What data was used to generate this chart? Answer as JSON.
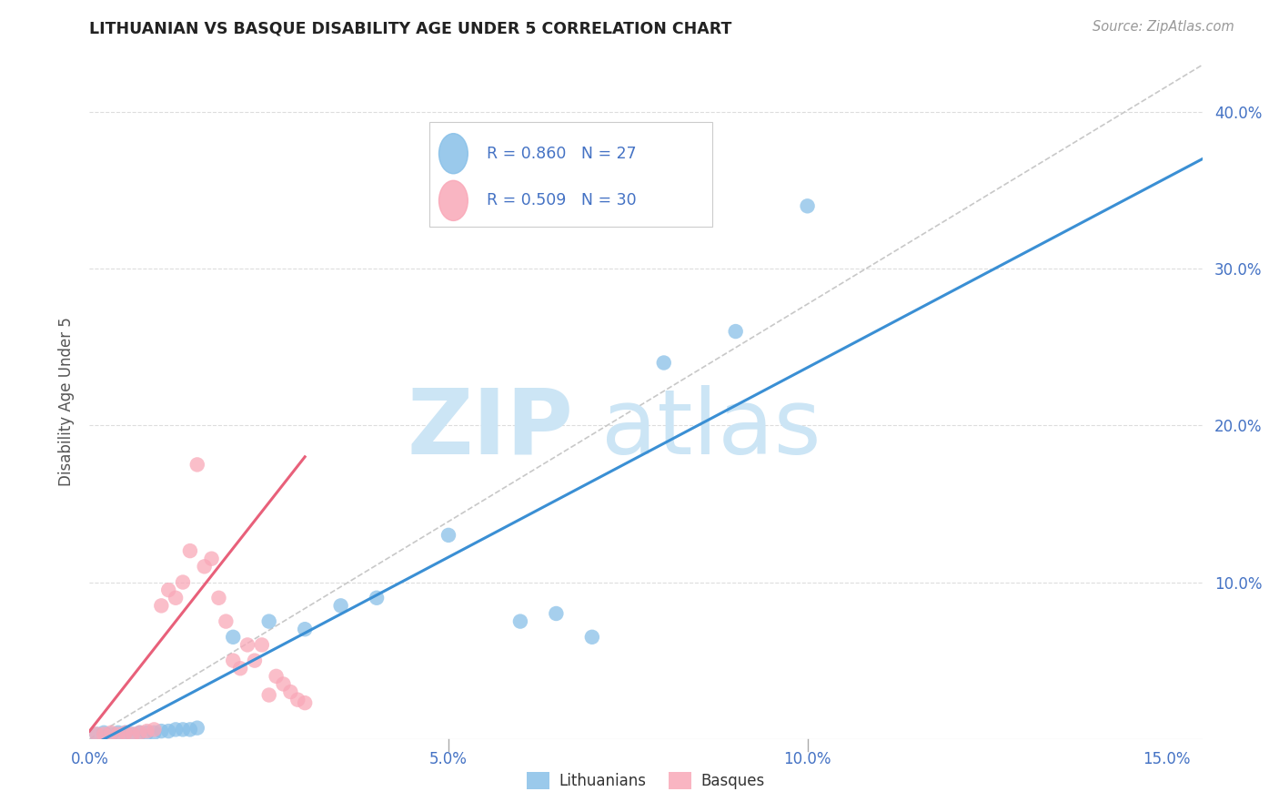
{
  "title": "LITHUANIAN VS BASQUE DISABILITY AGE UNDER 5 CORRELATION CHART",
  "source": "Source: ZipAtlas.com",
  "ylabel": "Disability Age Under 5",
  "xlim": [
    0.0,
    0.155
  ],
  "ylim": [
    0.0,
    0.43
  ],
  "xtick_vals": [
    0.0,
    0.05,
    0.1,
    0.15
  ],
  "xtick_labels": [
    "0.0%",
    "5.0%",
    "10.0%",
    "15.0%"
  ],
  "ytick_vals_right": [
    0.1,
    0.2,
    0.3,
    0.4
  ],
  "ytick_labels_right": [
    "10.0%",
    "20.0%",
    "30.0%",
    "40.0%"
  ],
  "scatter_color_lith": "#88c0e8",
  "scatter_color_basq": "#f9a8b8",
  "line_color_lith": "#3a8fd4",
  "line_color_basq": "#e8607a",
  "diagonal_color": "#c8c8c8",
  "watermark_zip": "ZIP",
  "watermark_atlas": "atlas",
  "watermark_color": "#cce5f5",
  "title_color": "#222222",
  "axis_color": "#4472c4",
  "grid_color": "#dddddd",
  "legend_label1": "Lithuanians",
  "legend_label2": "Basques",
  "legend_color1": "#88c0e8",
  "legend_color2": "#f9a8b8",
  "lith_x": [
    0.001,
    0.002,
    0.003,
    0.004,
    0.005,
    0.006,
    0.007,
    0.008,
    0.009,
    0.01,
    0.011,
    0.012,
    0.013,
    0.014,
    0.015,
    0.02,
    0.025,
    0.03,
    0.035,
    0.04,
    0.05,
    0.06,
    0.065,
    0.07,
    0.08,
    0.09,
    0.1
  ],
  "lith_y": [
    0.003,
    0.004,
    0.003,
    0.004,
    0.004,
    0.003,
    0.004,
    0.004,
    0.004,
    0.005,
    0.005,
    0.006,
    0.006,
    0.006,
    0.007,
    0.065,
    0.075,
    0.07,
    0.085,
    0.09,
    0.13,
    0.075,
    0.08,
    0.065,
    0.24,
    0.26,
    0.34
  ],
  "basq_x": [
    0.001,
    0.002,
    0.003,
    0.004,
    0.005,
    0.006,
    0.007,
    0.008,
    0.009,
    0.01,
    0.011,
    0.012,
    0.013,
    0.014,
    0.015,
    0.016,
    0.017,
    0.018,
    0.019,
    0.02,
    0.021,
    0.022,
    0.023,
    0.024,
    0.025,
    0.026,
    0.027,
    0.028,
    0.029,
    0.03
  ],
  "basq_y": [
    0.003,
    0.003,
    0.004,
    0.003,
    0.004,
    0.003,
    0.004,
    0.005,
    0.006,
    0.085,
    0.095,
    0.09,
    0.1,
    0.12,
    0.175,
    0.11,
    0.115,
    0.09,
    0.075,
    0.05,
    0.045,
    0.06,
    0.05,
    0.06,
    0.028,
    0.04,
    0.035,
    0.03,
    0.025,
    0.023
  ],
  "lith_line_x": [
    0.0,
    0.155
  ],
  "lith_line_y": [
    -0.005,
    0.37
  ],
  "basq_line_x": [
    0.0,
    0.03
  ],
  "basq_line_y": [
    0.005,
    0.18
  ],
  "diag_line_x": [
    0.0,
    0.155
  ],
  "diag_line_y": [
    0.0,
    0.43
  ]
}
